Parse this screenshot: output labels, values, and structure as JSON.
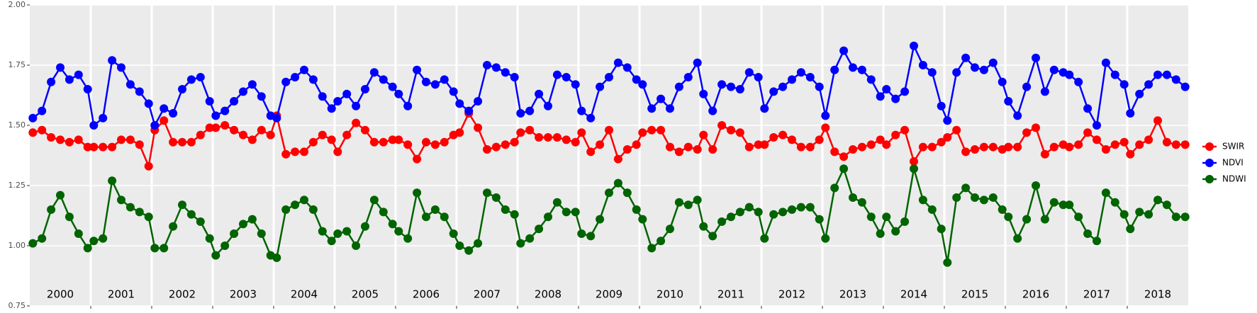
{
  "chart_data": {
    "type": "line",
    "x": [
      2000.05,
      2000.2,
      2000.35,
      2000.5,
      2000.65,
      2000.8,
      2000.95,
      2001.05,
      2001.2,
      2001.35,
      2001.5,
      2001.65,
      2001.8,
      2001.95,
      2002.05,
      2002.2,
      2002.35,
      2002.5,
      2002.65,
      2002.8,
      2002.95,
      2003.05,
      2003.2,
      2003.35,
      2003.5,
      2003.65,
      2003.8,
      2003.95,
      2004.05,
      2004.2,
      2004.35,
      2004.5,
      2004.65,
      2004.8,
      2004.95,
      2005.05,
      2005.2,
      2005.35,
      2005.5,
      2005.65,
      2005.8,
      2005.95,
      2006.05,
      2006.2,
      2006.35,
      2006.5,
      2006.65,
      2006.8,
      2006.95,
      2007.05,
      2007.2,
      2007.35,
      2007.5,
      2007.65,
      2007.8,
      2007.95,
      2008.05,
      2008.2,
      2008.35,
      2008.5,
      2008.65,
      2008.8,
      2008.95,
      2009.05,
      2009.2,
      2009.35,
      2009.5,
      2009.65,
      2009.8,
      2009.95,
      2010.05,
      2010.2,
      2010.35,
      2010.5,
      2010.65,
      2010.8,
      2010.95,
      2011.05,
      2011.2,
      2011.35,
      2011.5,
      2011.65,
      2011.8,
      2011.95,
      2012.05,
      2012.2,
      2012.35,
      2012.5,
      2012.65,
      2012.8,
      2012.95,
      2013.05,
      2013.2,
      2013.35,
      2013.5,
      2013.65,
      2013.8,
      2013.95,
      2014.05,
      2014.2,
      2014.35,
      2014.5,
      2014.65,
      2014.8,
      2014.95,
      2015.05,
      2015.2,
      2015.35,
      2015.5,
      2015.65,
      2015.8,
      2015.95,
      2016.05,
      2016.2,
      2016.35,
      2016.5,
      2016.65,
      2016.8,
      2016.95,
      2017.05,
      2017.2,
      2017.35,
      2017.5,
      2017.65,
      2017.8,
      2017.95,
      2018.05,
      2018.2,
      2018.35,
      2018.5,
      2018.65,
      2018.8,
      2018.95
    ],
    "series": [
      {
        "name": "SWIR",
        "color": "#ff0000",
        "values": [
          1.47,
          1.48,
          1.45,
          1.44,
          1.43,
          1.44,
          1.41,
          1.41,
          1.41,
          1.41,
          1.44,
          1.44,
          1.42,
          1.33,
          1.48,
          1.52,
          1.43,
          1.43,
          1.43,
          1.46,
          1.49,
          1.49,
          1.5,
          1.48,
          1.46,
          1.44,
          1.48,
          1.46,
          1.54,
          1.38,
          1.39,
          1.39,
          1.43,
          1.46,
          1.44,
          1.39,
          1.46,
          1.51,
          1.48,
          1.43,
          1.43,
          1.44,
          1.44,
          1.42,
          1.36,
          1.43,
          1.42,
          1.43,
          1.46,
          1.47,
          1.55,
          1.49,
          1.4,
          1.41,
          1.42,
          1.43,
          1.47,
          1.48,
          1.45,
          1.45,
          1.45,
          1.44,
          1.43,
          1.47,
          1.39,
          1.42,
          1.48,
          1.36,
          1.4,
          1.42,
          1.47,
          1.48,
          1.48,
          1.41,
          1.39,
          1.41,
          1.4,
          1.46,
          1.4,
          1.5,
          1.48,
          1.47,
          1.41,
          1.42,
          1.42,
          1.45,
          1.46,
          1.44,
          1.41,
          1.41,
          1.44,
          1.49,
          1.39,
          1.37,
          1.4,
          1.41,
          1.42,
          1.44,
          1.42,
          1.46,
          1.48,
          1.35,
          1.41,
          1.41,
          1.43,
          1.45,
          1.48,
          1.39,
          1.4,
          1.41,
          1.41,
          1.4,
          1.41,
          1.41,
          1.47,
          1.49,
          1.38,
          1.41,
          1.42,
          1.41,
          1.42,
          1.47,
          1.44,
          1.4,
          1.42,
          1.43,
          1.38,
          1.42,
          1.44,
          1.52,
          1.43,
          1.42,
          1.42
        ]
      },
      {
        "name": "NDVI",
        "color": "#0000ff",
        "values": [
          1.53,
          1.56,
          1.68,
          1.74,
          1.69,
          1.71,
          1.65,
          1.5,
          1.53,
          1.77,
          1.74,
          1.67,
          1.64,
          1.59,
          1.5,
          1.57,
          1.55,
          1.65,
          1.69,
          1.7,
          1.6,
          1.54,
          1.56,
          1.6,
          1.64,
          1.67,
          1.62,
          1.54,
          1.53,
          1.68,
          1.7,
          1.73,
          1.69,
          1.62,
          1.57,
          1.6,
          1.63,
          1.58,
          1.65,
          1.72,
          1.69,
          1.66,
          1.63,
          1.58,
          1.73,
          1.68,
          1.67,
          1.69,
          1.64,
          1.59,
          1.56,
          1.6,
          1.75,
          1.74,
          1.72,
          1.7,
          1.55,
          1.56,
          1.63,
          1.58,
          1.71,
          1.7,
          1.67,
          1.56,
          1.53,
          1.66,
          1.7,
          1.76,
          1.74,
          1.69,
          1.67,
          1.57,
          1.61,
          1.57,
          1.66,
          1.7,
          1.76,
          1.63,
          1.56,
          1.67,
          1.66,
          1.65,
          1.72,
          1.7,
          1.57,
          1.64,
          1.66,
          1.69,
          1.72,
          1.7,
          1.66,
          1.54,
          1.73,
          1.81,
          1.74,
          1.73,
          1.69,
          1.62,
          1.65,
          1.61,
          1.64,
          1.83,
          1.75,
          1.72,
          1.58,
          1.52,
          1.72,
          1.78,
          1.74,
          1.73,
          1.76,
          1.68,
          1.6,
          1.54,
          1.66,
          1.78,
          1.64,
          1.73,
          1.72,
          1.71,
          1.68,
          1.57,
          1.5,
          1.76,
          1.71,
          1.67,
          1.55,
          1.63,
          1.67,
          1.71,
          1.71,
          1.69,
          1.66
        ]
      },
      {
        "name": "NDWI",
        "color": "#006400",
        "values": [
          1.01,
          1.03,
          1.15,
          1.21,
          1.12,
          1.05,
          0.99,
          1.02,
          1.03,
          1.27,
          1.19,
          1.16,
          1.14,
          1.12,
          0.99,
          0.99,
          1.08,
          1.17,
          1.13,
          1.1,
          1.03,
          0.96,
          1.0,
          1.05,
          1.09,
          1.11,
          1.05,
          0.96,
          0.95,
          1.15,
          1.17,
          1.19,
          1.15,
          1.06,
          1.02,
          1.05,
          1.06,
          1.0,
          1.08,
          1.19,
          1.14,
          1.09,
          1.06,
          1.03,
          1.22,
          1.12,
          1.15,
          1.12,
          1.05,
          1.0,
          0.98,
          1.01,
          1.22,
          1.2,
          1.15,
          1.13,
          1.01,
          1.03,
          1.07,
          1.12,
          1.18,
          1.14,
          1.14,
          1.05,
          1.04,
          1.11,
          1.22,
          1.26,
          1.22,
          1.15,
          1.11,
          0.99,
          1.02,
          1.07,
          1.18,
          1.17,
          1.19,
          1.08,
          1.04,
          1.1,
          1.12,
          1.14,
          1.16,
          1.14,
          1.03,
          1.13,
          1.14,
          1.15,
          1.16,
          1.16,
          1.11,
          1.03,
          1.24,
          1.32,
          1.2,
          1.18,
          1.12,
          1.05,
          1.12,
          1.06,
          1.1,
          1.32,
          1.19,
          1.15,
          1.07,
          0.93,
          1.2,
          1.24,
          1.2,
          1.19,
          1.2,
          1.15,
          1.12,
          1.03,
          1.11,
          1.25,
          1.11,
          1.18,
          1.17,
          1.17,
          1.12,
          1.05,
          1.02,
          1.22,
          1.18,
          1.13,
          1.07,
          1.14,
          1.13,
          1.19,
          1.17,
          1.12,
          1.12
        ]
      }
    ],
    "xlim": [
      2000,
      2019
    ],
    "xticks": [
      2001,
      2002,
      2003,
      2004,
      2005,
      2006,
      2007,
      2008,
      2009,
      2010,
      2011,
      2012,
      2013,
      2014,
      2015,
      2016,
      2017,
      2018
    ],
    "years": [
      2000,
      2001,
      2002,
      2003,
      2004,
      2005,
      2006,
      2007,
      2008,
      2009,
      2010,
      2011,
      2012,
      2013,
      2014,
      2015,
      2016,
      2017,
      2018
    ],
    "ylim": [
      0.75,
      2
    ],
    "yticks": [
      0.75,
      {
        "value": 1,
        "label": "1.00"
      },
      1.25,
      {
        "value": 1.5,
        "label": "1.50"
      },
      1.75,
      {
        "value": 2,
        "label": "2.00"
      }
    ],
    "grid": true
  }
}
